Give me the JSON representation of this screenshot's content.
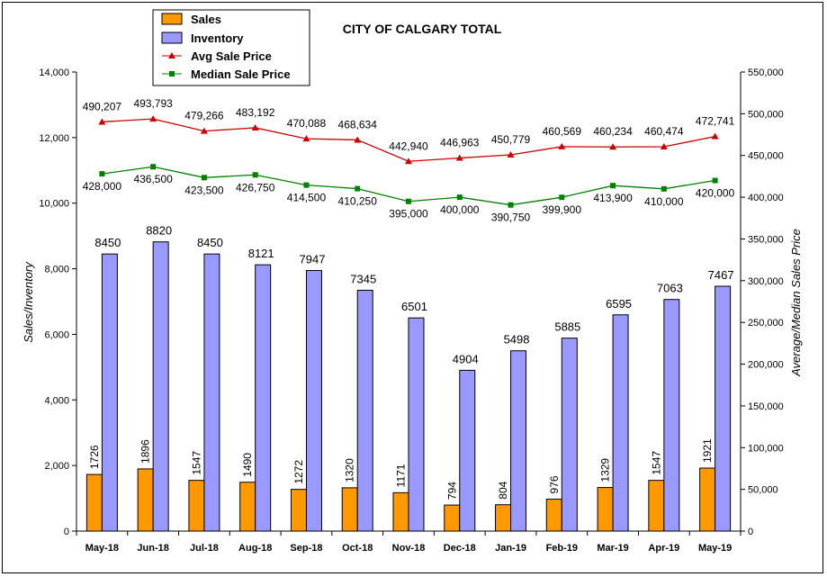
{
  "chart_data": {
    "type": "bar",
    "title": "CITY OF CALGARY TOTAL",
    "ylabel": "Sales/Inventory",
    "y2label": "Average/Median Sales Price",
    "ylim": [
      0,
      14000
    ],
    "y2lim": [
      0,
      550000
    ],
    "yticks": [
      "0",
      "2,000",
      "4,000",
      "6,000",
      "8,000",
      "10,000",
      "12,000",
      "14,000"
    ],
    "y2ticks": [
      "0",
      "50,000",
      "100,000",
      "150,000",
      "200,000",
      "250,000",
      "300,000",
      "350,000",
      "400,000",
      "450,000",
      "500,000",
      "550,000"
    ],
    "categories": [
      "May-18",
      "Jun-18",
      "Jul-18",
      "Aug-18",
      "Sep-18",
      "Oct-18",
      "Nov-18",
      "Dec-18",
      "Jan-19",
      "Feb-19",
      "Mar-19",
      "Apr-19",
      "May-19"
    ],
    "series": [
      {
        "name": "Sales",
        "type": "bar",
        "axis": "left",
        "color": "#FF9900",
        "values": [
          1726,
          1896,
          1547,
          1490,
          1272,
          1320,
          1171,
          794,
          804,
          976,
          1329,
          1547,
          1921
        ],
        "labels": [
          "1726",
          "1896",
          "1547",
          "1490",
          "1272",
          "1320",
          "1171",
          "794",
          "804",
          "976",
          "1329",
          "1547",
          "1921"
        ]
      },
      {
        "name": "Inventory",
        "type": "bar",
        "axis": "left",
        "color": "#9999FF",
        "values": [
          8450,
          8820,
          8450,
          8121,
          7947,
          7345,
          6501,
          4904,
          5498,
          5885,
          6595,
          7063,
          7467
        ],
        "labels": [
          "8450",
          "8820",
          "8450",
          "8121",
          "7947",
          "7345",
          "6501",
          "4904",
          "5498",
          "5885",
          "6595",
          "7063",
          "7467"
        ]
      },
      {
        "name": "Avg Sale Price",
        "type": "line",
        "axis": "right",
        "color": "#CC0000",
        "marker": "triangle",
        "values": [
          490207,
          493793,
          479266,
          483192,
          470088,
          468634,
          442940,
          446963,
          450779,
          460569,
          460234,
          460474,
          472741
        ],
        "labels": [
          "490,207",
          "493,793",
          "479,266",
          "483,192",
          "470,088",
          "468,634",
          "442,940",
          "446,963",
          "450,779",
          "460,569",
          "460,234",
          "460,474",
          "472,741"
        ]
      },
      {
        "name": "Median Sale Price",
        "type": "line",
        "axis": "right",
        "color": "#008000",
        "marker": "square",
        "values": [
          428000,
          436500,
          423500,
          426750,
          414500,
          410250,
          395000,
          400000,
          390750,
          399900,
          413900,
          410000,
          420000
        ],
        "labels": [
          "428,000",
          "436,500",
          "423,500",
          "426,750",
          "414,500",
          "410,250",
          "395,000",
          "400,000",
          "390,750",
          "399,900",
          "413,900",
          "410,000",
          "420,000"
        ]
      }
    ],
    "grid": false,
    "legend": "top-left"
  }
}
